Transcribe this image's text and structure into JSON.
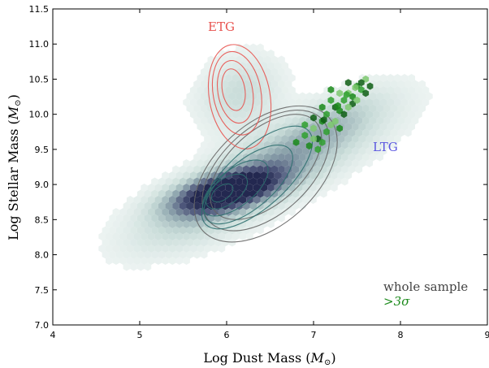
{
  "chart_data": {
    "type": "scatter",
    "subtype": "hexbin-density-with-contours",
    "xlabel": "Log Dust Mass (",
    "xlabel_math": "M",
    "xlabel_sub": "⊙",
    "ylabel": "Log Stellar Mass (",
    "ylabel_math": "M",
    "ylabel_sub": "⊙",
    "xlim": [
      4,
      9
    ],
    "ylim": [
      7.0,
      11.5
    ],
    "xticks": [
      4,
      5,
      6,
      7,
      8,
      9
    ],
    "yticks": [
      7.0,
      7.5,
      8.0,
      8.5,
      9.0,
      9.5,
      10.0,
      10.5,
      11.0,
      11.5
    ],
    "xtick_labels": [
      "4",
      "5",
      "6",
      "7",
      "8",
      "9"
    ],
    "ytick_labels": [
      "7.0",
      "7.5",
      "8.0",
      "8.5",
      "9.0",
      "9.5",
      "10.0",
      "10.5",
      "11.0",
      "11.5"
    ],
    "grid": false,
    "annotations": {
      "etg": "ETG",
      "ltg": "LTG",
      "legend_whole": "whole sample",
      "legend_sig": ">3σ"
    },
    "colors": {
      "etg": "#e8534f",
      "ltg": "#5b57e0",
      "whole_contour": "#666666",
      "ltg_contour": "#2e6f6f",
      "sig": "#1a8a1a",
      "hex_low": "#dce9e6",
      "hex_high": "#2a2f55"
    },
    "series": [
      {
        "name": "whole sample",
        "kind": "density-contours",
        "center": [
          6.5,
          9.2
        ],
        "levels": [
          {
            "cx": 6.45,
            "cy": 9.15,
            "rx": 1.95,
            "ry": 0.72,
            "angle": 42
          },
          {
            "cx": 6.45,
            "cy": 9.2,
            "rx": 1.75,
            "ry": 0.62,
            "angle": 42
          },
          {
            "cx": 6.45,
            "cy": 9.25,
            "rx": 1.55,
            "ry": 0.52,
            "angle": 42
          }
        ]
      },
      {
        "name": "ETG",
        "kind": "density-contours",
        "center": [
          6.1,
          10.3
        ],
        "levels": [
          {
            "cx": 6.15,
            "cy": 10.25,
            "rx": 0.7,
            "ry": 0.75,
            "angle": 10
          },
          {
            "cx": 6.12,
            "cy": 10.3,
            "rx": 0.55,
            "ry": 0.6,
            "angle": 10
          },
          {
            "cx": 6.1,
            "cy": 10.32,
            "rx": 0.4,
            "ry": 0.45,
            "angle": 10
          },
          {
            "cx": 6.08,
            "cy": 10.35,
            "rx": 0.26,
            "ry": 0.3,
            "angle": 10
          }
        ]
      },
      {
        "name": "LTG",
        "kind": "density-contours",
        "center": [
          6.0,
          8.9
        ],
        "levels": [
          {
            "cx": 6.35,
            "cy": 9.1,
            "rx": 1.6,
            "ry": 0.42,
            "angle": 42
          },
          {
            "cx": 6.25,
            "cy": 9.0,
            "rx": 1.25,
            "ry": 0.34,
            "angle": 40
          },
          {
            "cx": 6.1,
            "cy": 8.95,
            "rx": 0.9,
            "ry": 0.26,
            "angle": 38
          },
          {
            "cx": 6.0,
            "cy": 8.9,
            "rx": 0.55,
            "ry": 0.18,
            "angle": 36
          },
          {
            "cx": 5.95,
            "cy": 8.88,
            "rx": 0.28,
            "ry": 0.1,
            "angle": 35
          }
        ]
      },
      {
        "name": ">3σ",
        "kind": "points",
        "points": [
          [
            6.8,
            9.6
          ],
          [
            6.9,
            9.7
          ],
          [
            7.0,
            9.8
          ],
          [
            7.05,
            9.65
          ],
          [
            7.1,
            9.9
          ],
          [
            7.15,
            10.0
          ],
          [
            7.2,
            9.85
          ],
          [
            7.25,
            10.1
          ],
          [
            7.3,
            10.05
          ],
          [
            7.35,
            10.2
          ],
          [
            7.4,
            10.3
          ],
          [
            7.45,
            10.15
          ],
          [
            7.5,
            10.4
          ],
          [
            7.55,
            10.35
          ],
          [
            7.6,
            10.5
          ],
          [
            7.0,
            9.95
          ],
          [
            7.1,
            10.1
          ],
          [
            7.2,
            10.2
          ],
          [
            7.3,
            10.3
          ],
          [
            7.4,
            10.45
          ],
          [
            6.95,
            9.55
          ],
          [
            7.05,
            9.5
          ],
          [
            7.25,
            9.9
          ],
          [
            7.35,
            10.0
          ],
          [
            7.45,
            10.25
          ],
          [
            7.15,
            9.75
          ],
          [
            7.5,
            10.2
          ],
          [
            7.6,
            10.3
          ],
          [
            7.3,
            9.8
          ],
          [
            7.1,
            9.6
          ],
          [
            7.4,
            10.1
          ],
          [
            7.55,
            10.45
          ],
          [
            7.2,
            10.35
          ],
          [
            6.9,
            9.85
          ],
          [
            7.0,
            9.65
          ],
          [
            7.65,
            10.4
          ],
          [
            7.28,
            10.12
          ],
          [
            7.38,
            10.28
          ],
          [
            7.48,
            10.38
          ],
          [
            7.12,
            9.92
          ]
        ]
      }
    ]
  }
}
